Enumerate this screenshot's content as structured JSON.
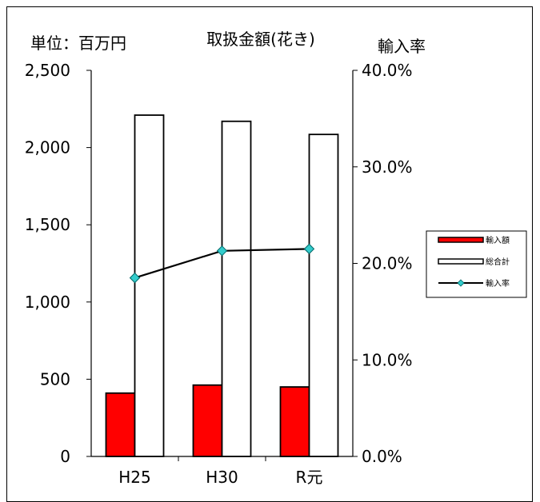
{
  "chart_data": {
    "type": "bar",
    "title": "取扱金額(花き)",
    "left_axis_label": "単位：百万円",
    "right_axis_label": "輸入率",
    "categories": [
      "H25",
      "H30",
      "R元"
    ],
    "series": [
      {
        "name": "輸入額",
        "kind": "bar",
        "axis": "left",
        "color": "#ff0000",
        "values": [
          410,
          462,
          450
        ]
      },
      {
        "name": "総合計",
        "kind": "bar",
        "axis": "left",
        "color": "#ffffff",
        "values": [
          2210,
          2170,
          2085
        ]
      },
      {
        "name": "輸入率",
        "kind": "line",
        "axis": "right",
        "color": "#000000",
        "marker_color": "#33cccc",
        "values": [
          0.185,
          0.213,
          0.215
        ]
      }
    ],
    "left_axis": {
      "min": 0,
      "max": 2500,
      "ticks": [
        "0",
        "500",
        "1,000",
        "1,500",
        "2,000",
        "2,500"
      ]
    },
    "right_axis": {
      "min": 0,
      "max": 0.4,
      "ticks": [
        "0.0%",
        "10.0%",
        "20.0%",
        "30.0%",
        "40.0%"
      ]
    },
    "grid": false,
    "legend_position": "right"
  }
}
